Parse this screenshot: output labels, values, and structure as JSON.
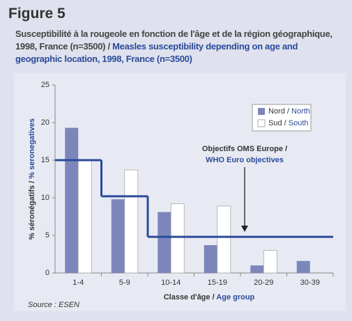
{
  "chart_data": {
    "type": "bar",
    "title": "Figure 5",
    "subtitle": "Susceptibilité à la rougeole en fonction de l'âge et de la région géographique, 1998, France (n=3500) / Measles susceptibility depending on age and geographic location, 1998, France (n=3500)",
    "categories": [
      "1-4",
      "5-9",
      "10-14",
      "15-19",
      "20-29",
      "30-39"
    ],
    "series": [
      {
        "name": "Nord / North",
        "color": "#7d86bb",
        "values": [
          19.3,
          9.8,
          8.1,
          3.7,
          1.0,
          1.6
        ]
      },
      {
        "name": "Sud / South",
        "color": "#ffffff",
        "values": [
          15.0,
          13.7,
          9.2,
          8.9,
          3.0,
          null
        ]
      }
    ],
    "objective": {
      "color": "#2b4a9a",
      "values": [
        15,
        10.2,
        4.8,
        4.8,
        4.8,
        4.8
      ]
    },
    "annotation": [
      "Objectifs OMS Europe /",
      "WHO Euro objectives"
    ],
    "ylim": [
      0,
      25
    ],
    "yticks": [
      0,
      5,
      10,
      15,
      20,
      25
    ],
    "ylabel": "% séronégatifs / % seronegatives",
    "xlabel": "Classe d'âge / Age group",
    "source": "Source : ESEN",
    "legend": "upper right"
  }
}
